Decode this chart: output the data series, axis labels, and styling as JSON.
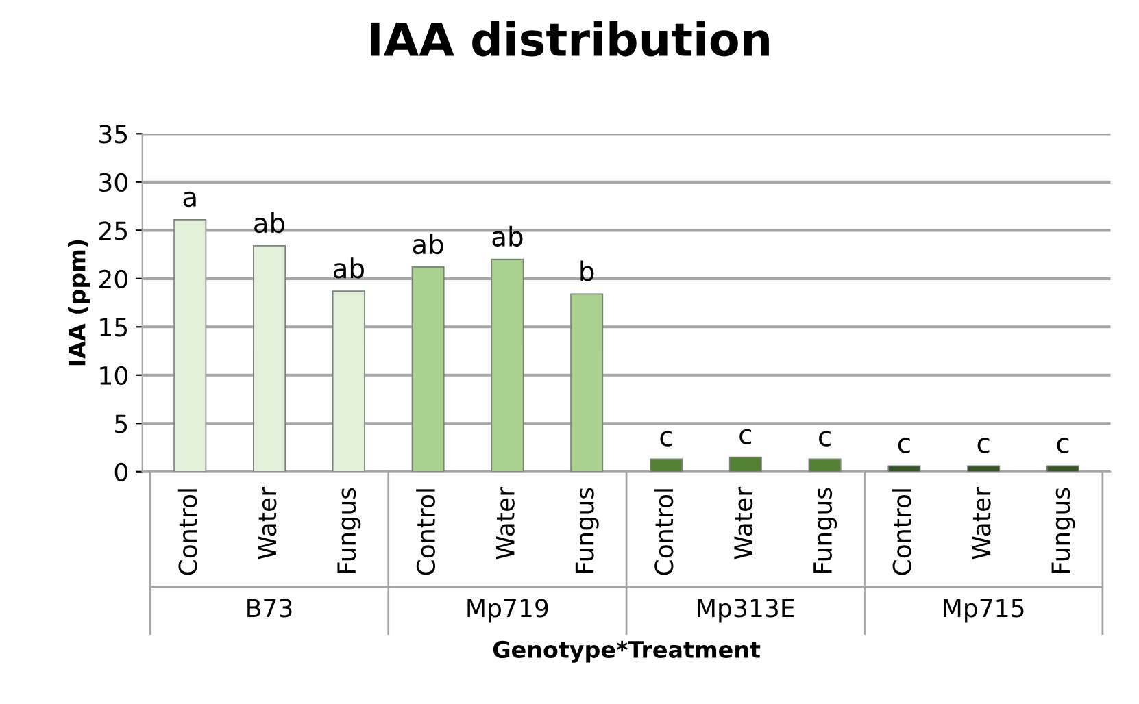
{
  "chart_data": {
    "type": "bar",
    "title": "IAA distribution",
    "xlabel": "Genotype*Treatment",
    "ylabel": "IAA (ppm)",
    "categories": [
      "Control",
      "Water",
      "Fungus",
      "Control",
      "Water",
      "Fungus",
      "Control",
      "Water",
      "Fungus",
      "Control",
      "Water",
      "Fungus"
    ],
    "values": [
      26.1,
      23.4,
      18.7,
      21.2,
      22.0,
      18.4,
      1.3,
      1.5,
      1.3,
      0.6,
      0.6,
      0.6
    ],
    "colors": [
      "#e2efd9",
      "#e2efd9",
      "#e2efd9",
      "#a9d08e",
      "#a9d08e",
      "#a9d08e",
      "#548235",
      "#548235",
      "#548235",
      "#375623",
      "#375623",
      "#375623"
    ],
    "value_labels": [
      "a",
      "ab",
      "ab",
      "ab",
      "ab",
      "b",
      "c",
      "c",
      "c",
      "c",
      "c",
      "c"
    ],
    "annotations": [
      "B73",
      "Mp719",
      "Mp313E",
      "Mp715"
    ],
    "ylim": [
      0,
      35
    ],
    "yticks": [
      0,
      5,
      10,
      15,
      20,
      25,
      30,
      35
    ],
    "grid": "y",
    "legend": false
  }
}
